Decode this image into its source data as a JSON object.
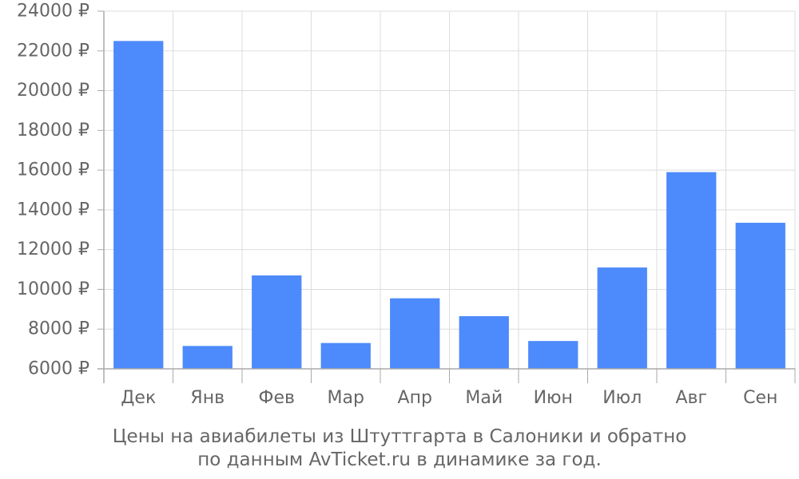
{
  "chart_data": {
    "type": "bar",
    "title_lines": [
      "Цены на авиабилеты из Штуттгарта в Салоники и обратно",
      "по данным AvTicket.ru в динамике за год."
    ],
    "xlabel": "",
    "ylabel": "",
    "categories": [
      "Дек",
      "Янв",
      "Фев",
      "Мар",
      "Апр",
      "Май",
      "Июн",
      "Июл",
      "Авг",
      "Сен"
    ],
    "values": [
      22500,
      7150,
      10700,
      7300,
      9550,
      8650,
      7400,
      11100,
      15900,
      13350
    ],
    "ylim": [
      6000,
      24000
    ],
    "yticks": [
      6000,
      8000,
      10000,
      12000,
      14000,
      16000,
      18000,
      20000,
      22000,
      24000
    ],
    "ytick_labels": [
      "6000 ₽",
      "8000 ₽",
      "10000 ₽",
      "12000 ₽",
      "14000 ₽",
      "16000 ₽",
      "18000 ₽",
      "20000 ₽",
      "22000 ₽",
      "24000 ₽"
    ],
    "grid": true,
    "bar_color": "#4d8afb",
    "grid_color": "#dddddd",
    "axis_color": "#aaaaaa",
    "text_color": "#666666"
  }
}
